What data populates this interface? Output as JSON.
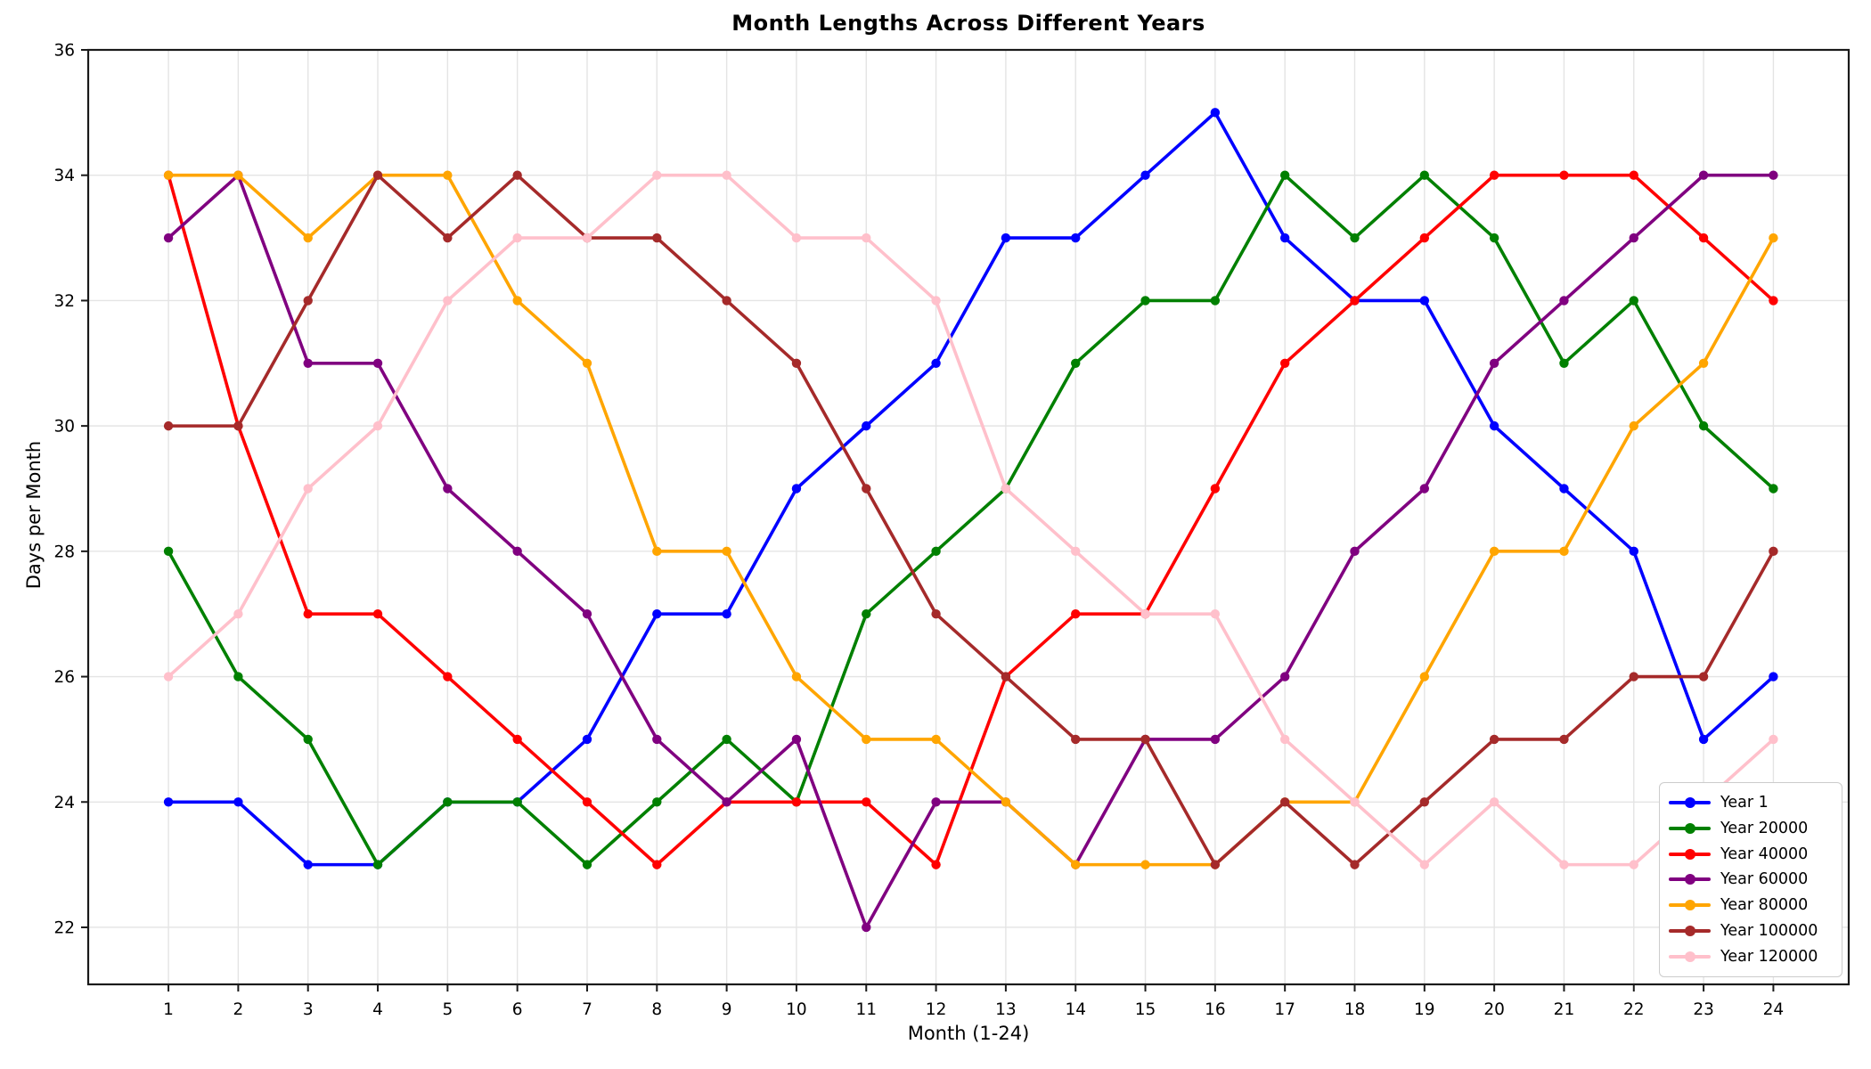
{
  "chart_data": {
    "type": "line",
    "title": "Month Lengths Across Different Years",
    "xlabel": "Month (1-24)",
    "ylabel": "Days per Month",
    "x": [
      1,
      2,
      3,
      4,
      5,
      6,
      7,
      8,
      9,
      10,
      11,
      12,
      13,
      14,
      15,
      16,
      17,
      18,
      19,
      20,
      21,
      22,
      23,
      24
    ],
    "xticks": [
      1,
      2,
      3,
      4,
      5,
      6,
      7,
      8,
      9,
      10,
      11,
      12,
      13,
      14,
      15,
      16,
      17,
      18,
      19,
      20,
      21,
      22,
      23,
      24
    ],
    "yticks": [
      22,
      24,
      26,
      28,
      30,
      32,
      34,
      36
    ],
    "xlim": [
      -0.15,
      25.08
    ],
    "ylim": [
      21.09,
      36
    ],
    "grid": true,
    "grid_color": "#e4e4e4",
    "spine_color": "#1a1a1a",
    "legend_position": "lower right",
    "marker": "circle",
    "series": [
      {
        "name": "Year 1",
        "color": "#0000ff",
        "values": [
          24,
          24,
          23,
          23,
          24,
          24,
          25,
          27,
          27,
          29,
          30,
          31,
          33,
          33,
          34,
          35,
          33,
          32,
          32,
          30,
          29,
          28,
          25,
          26
        ]
      },
      {
        "name": "Year 20000",
        "color": "#008000",
        "values": [
          28,
          26,
          25,
          23,
          24,
          24,
          23,
          24,
          25,
          24,
          27,
          28,
          29,
          31,
          32,
          32,
          34,
          33,
          34,
          33,
          31,
          32,
          30,
          29
        ]
      },
      {
        "name": "Year 40000",
        "color": "#ff0000",
        "values": [
          34,
          30,
          27,
          27,
          26,
          25,
          24,
          23,
          24,
          24,
          24,
          23,
          26,
          27,
          27,
          29,
          31,
          32,
          33,
          34,
          34,
          34,
          33,
          32
        ]
      },
      {
        "name": "Year 60000",
        "color": "#800080",
        "values": [
          33,
          34,
          31,
          31,
          29,
          28,
          27,
          25,
          24,
          25,
          22,
          24,
          24,
          23,
          25,
          25,
          26,
          28,
          29,
          31,
          32,
          33,
          34,
          34
        ]
      },
      {
        "name": "Year 80000",
        "color": "#ffa500",
        "values": [
          34,
          34,
          33,
          34,
          34,
          32,
          31,
          28,
          28,
          26,
          25,
          25,
          24,
          23,
          23,
          23,
          24,
          24,
          26,
          28,
          28,
          30,
          31,
          33
        ]
      },
      {
        "name": "Year 100000",
        "color": "#a52a2a",
        "values": [
          30,
          30,
          32,
          34,
          33,
          34,
          33,
          33,
          32,
          31,
          29,
          27,
          26,
          25,
          25,
          23,
          24,
          23,
          24,
          25,
          25,
          26,
          26,
          28
        ]
      },
      {
        "name": "Year 120000",
        "color": "#ffc0cb",
        "values": [
          26,
          27,
          29,
          30,
          32,
          33,
          33,
          34,
          34,
          33,
          33,
          32,
          29,
          28,
          27,
          27,
          25,
          24,
          23,
          24,
          23,
          23,
          24,
          25
        ]
      }
    ]
  }
}
